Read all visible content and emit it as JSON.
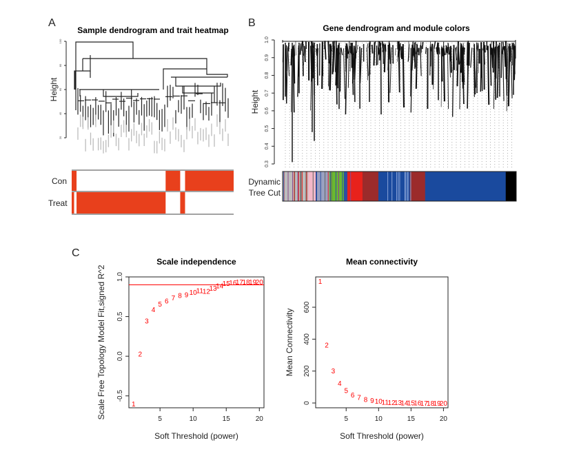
{
  "panels": {
    "a": "A",
    "b": "B",
    "c": "C"
  },
  "chart_data": [
    {
      "type": "dendrogram-heatmap",
      "title": "Sample dendrogram and trait heatmap",
      "ylabel": "Height",
      "yticks": [
        "100",
        "80",
        "60",
        "40",
        "20"
      ],
      "traits": [
        {
          "name": "Con",
          "segments": [
            [
              0,
              0.03,
              1
            ],
            [
              0.03,
              0.58,
              0
            ],
            [
              0.58,
              0.67,
              1
            ],
            [
              0.67,
              0.7,
              0
            ],
            [
              0.7,
              1,
              1
            ]
          ]
        },
        {
          "name": "Treat",
          "segments": [
            [
              0,
              0.015,
              1
            ],
            [
              0.015,
              0.03,
              0
            ],
            [
              0.03,
              0.58,
              1
            ],
            [
              0.58,
              0.67,
              0
            ],
            [
              0.67,
              0.7,
              1
            ],
            [
              0.7,
              1,
              0
            ]
          ]
        }
      ],
      "trait_color": "#e8401c"
    },
    {
      "type": "dendrogram-modules",
      "title": "Gene dendrogram and module colors",
      "ylabel": "Height",
      "yticks": [
        "0.3",
        "0.4",
        "0.5",
        "0.6",
        "0.7",
        "0.8",
        "0.9",
        "1.0"
      ],
      "ylim": [
        0.3,
        1.0
      ],
      "row_label": [
        "Dynamic",
        "Tree Cut"
      ],
      "modules": [
        {
          "color": "#bdbdbd",
          "frac": 0.11
        },
        {
          "color": "#f4b8c8",
          "frac": 0.035
        },
        {
          "color": "#9aa0c0",
          "frac": 0.055
        },
        {
          "color": "#6ab82f",
          "frac": 0.062
        },
        {
          "color": "#2c4fa0",
          "frac": 0.015
        },
        {
          "color": "#e8221c",
          "frac": 0.065
        },
        {
          "color": "#9b2b2b",
          "frac": 0.068
        },
        {
          "color": "#1a4a9e",
          "frac": 0.135
        },
        {
          "color": "#9b2b2b",
          "frac": 0.065
        },
        {
          "color": "#1a4a9e",
          "frac": 0.345
        },
        {
          "color": "#000000",
          "frac": 0.045
        }
      ]
    },
    {
      "type": "scatter",
      "title": "Scale independence",
      "xlabel": "Soft Threshold (power)",
      "ylabel": "Scale Free Topology Model Fit,signed R^2",
      "xlim": [
        0.3,
        20.7
      ],
      "ylim": [
        -0.65,
        1.0
      ],
      "xticks": [
        5,
        10,
        15,
        20
      ],
      "yticks": [
        -0.5,
        0.0,
        0.5,
        1.0
      ],
      "ytick_labels": [
        "-0.5",
        "0.0",
        "0.5",
        "1.0"
      ],
      "hline": 0.9,
      "x": [
        1,
        2,
        3,
        4,
        5,
        6,
        7,
        8,
        9,
        10,
        11,
        12,
        13,
        14,
        15,
        16,
        17,
        18,
        19,
        20
      ],
      "y": [
        -0.6,
        0.03,
        0.45,
        0.59,
        0.66,
        0.7,
        0.74,
        0.77,
        0.78,
        0.81,
        0.83,
        0.82,
        0.86,
        0.89,
        0.92,
        0.93,
        0.94,
        0.94,
        0.94,
        0.94
      ],
      "color": "#ff0000"
    },
    {
      "type": "scatter",
      "title": "Mean connectivity",
      "xlabel": "Soft Threshold (power)",
      "ylabel": "Mean Connectivity",
      "xlim": [
        0.3,
        20.7
      ],
      "ylim": [
        -30,
        790
      ],
      "xticks": [
        5,
        10,
        15,
        20
      ],
      "yticks": [
        0,
        200,
        400,
        600
      ],
      "ytick_labels": [
        "0",
        "200",
        "400",
        "600"
      ],
      "x": [
        1,
        2,
        3,
        4,
        5,
        6,
        7,
        8,
        9,
        10,
        11,
        12,
        13,
        14,
        15,
        16,
        17,
        18,
        19,
        20
      ],
      "y": [
        765,
        365,
        204,
        125,
        79,
        53,
        36,
        24,
        17,
        13,
        7,
        5,
        4,
        3,
        2,
        2,
        1,
        1,
        1,
        1
      ],
      "color": "#ff0000"
    }
  ]
}
